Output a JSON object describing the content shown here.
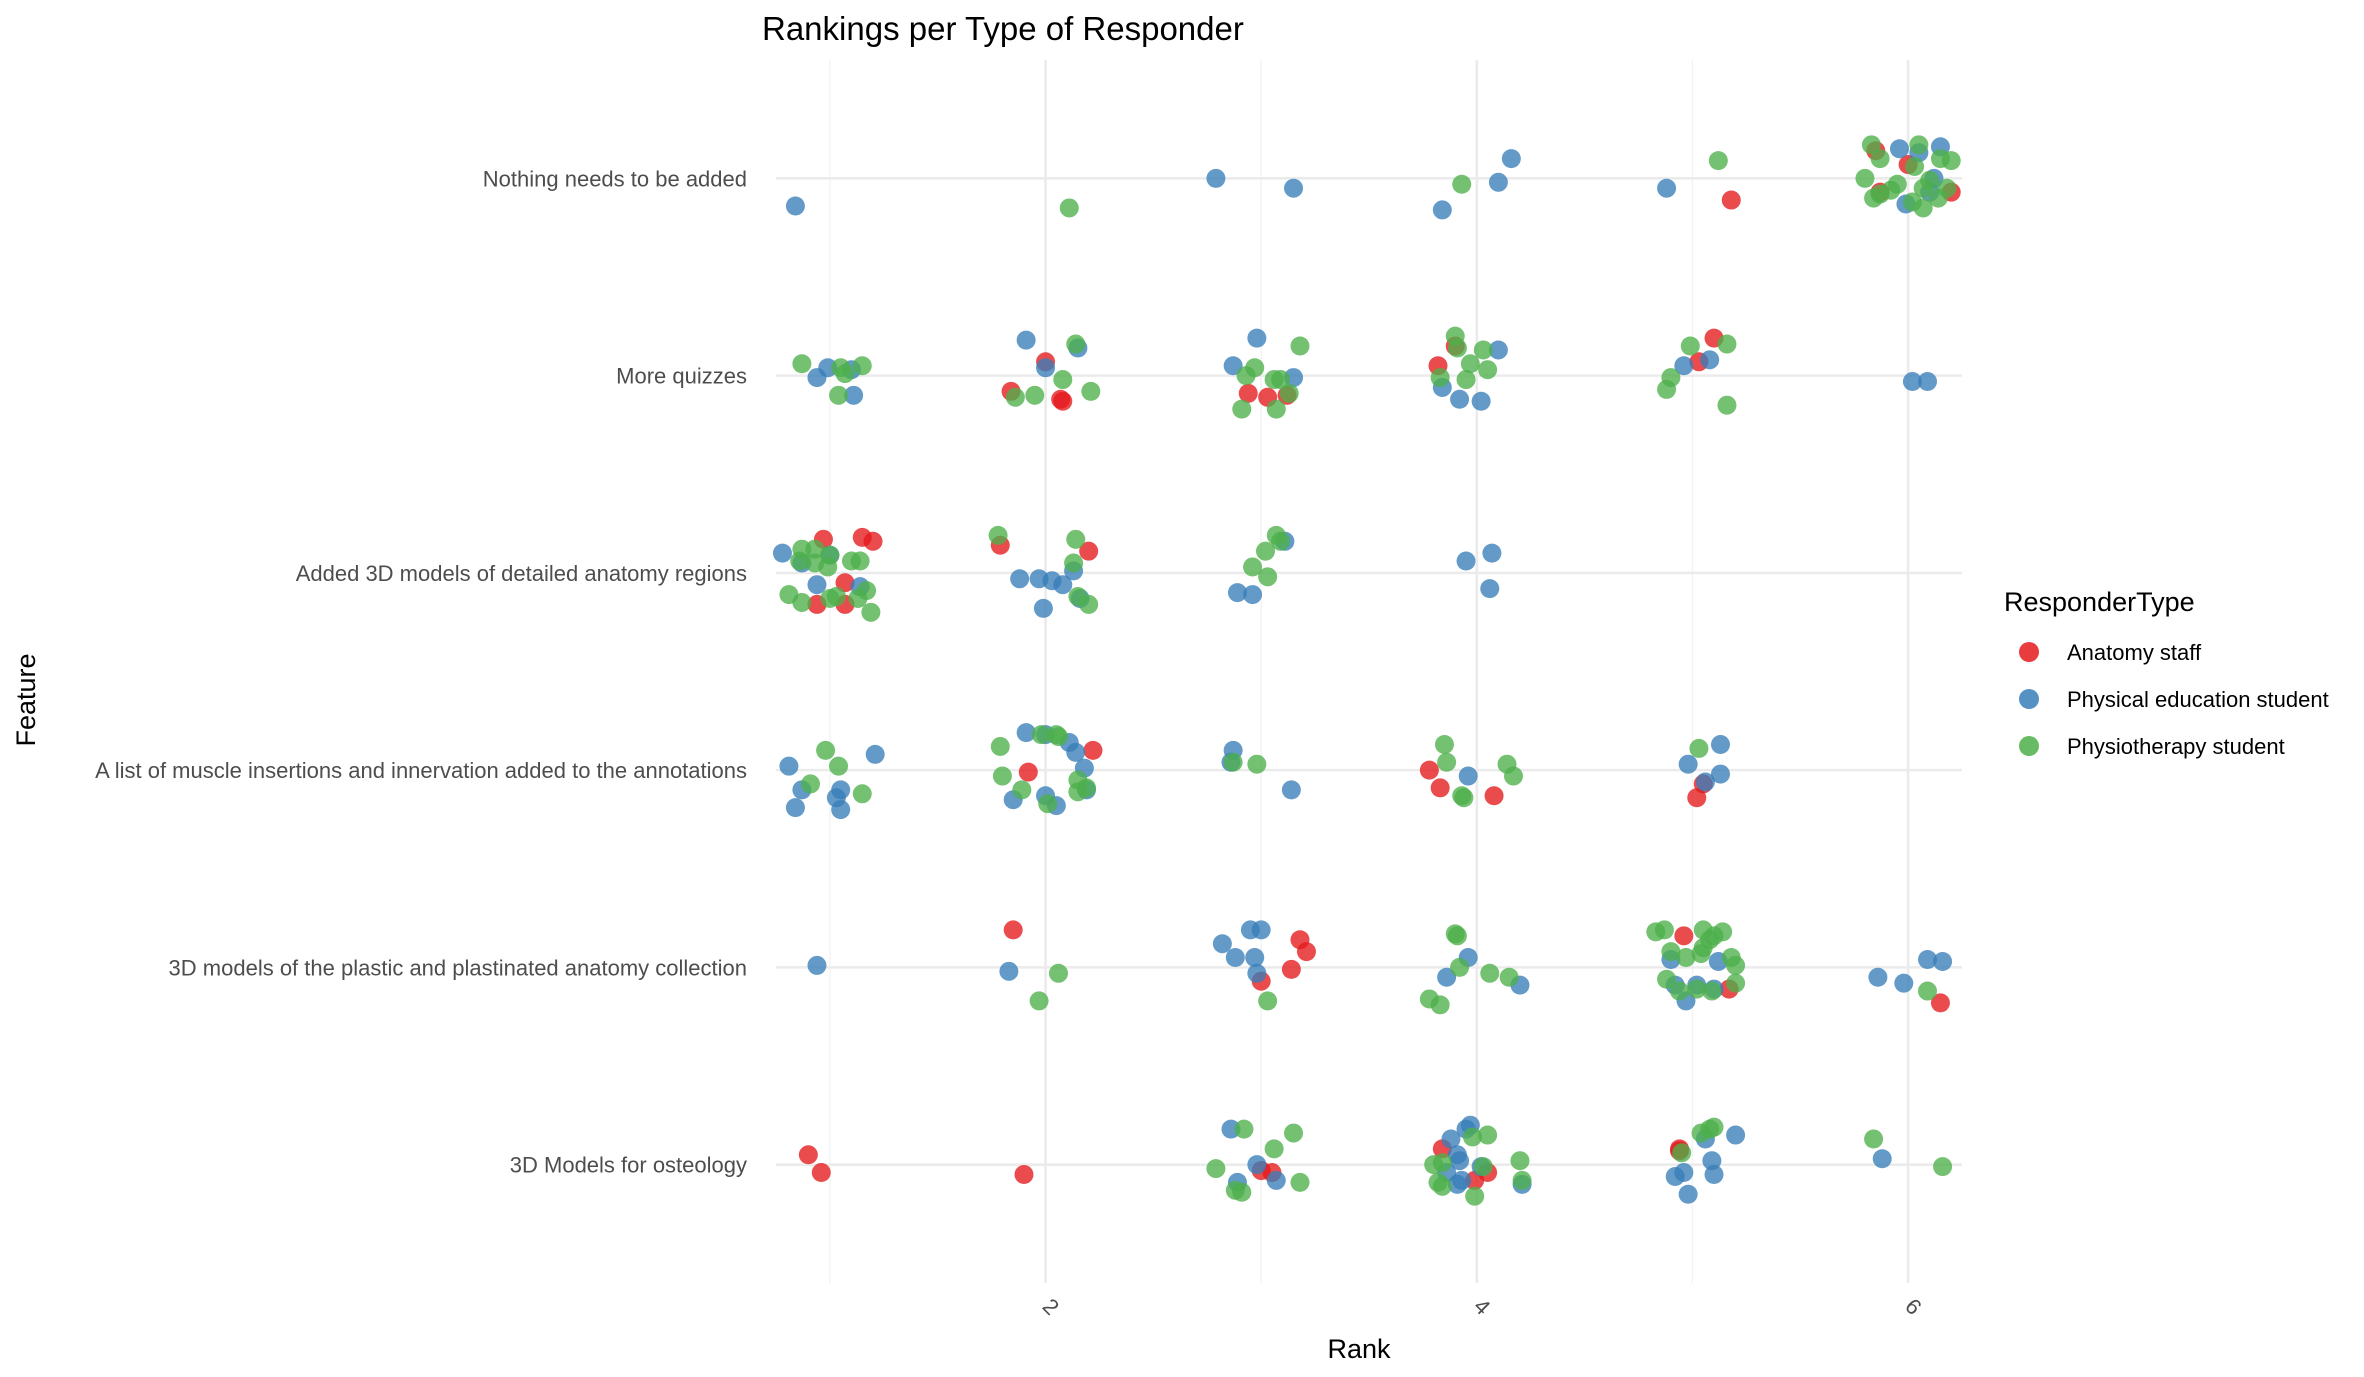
{
  "chart_data": {
    "type": "scatter",
    "title": "Rankings per Type of Responder",
    "xlabel": "Rank",
    "ylabel": "Feature",
    "xlim": [
      0.75,
      6.25
    ],
    "x_ticks": [
      "2",
      "4",
      "6"
    ],
    "x_tick_values": [
      2,
      4,
      6
    ],
    "x_tick_rotation": "45deg",
    "categories": [
      "3D Models for osteology",
      "3D models of the plastic and plastinated anatomy collection",
      "A list of muscle insertions and innervation added to the annotations",
      "Added 3D models of detailed anatomy regions",
      "More quizzes",
      "Nothing needs to be added"
    ],
    "grid": true,
    "jitter": true,
    "legend": {
      "title": "ResponderType",
      "position": "right"
    },
    "series": [
      {
        "name": "Anatomy staff",
        "color": "#E41A1C",
        "points": [
          [
            5.85,
            6.14
          ],
          [
            6.0,
            6.07
          ],
          [
            5.87,
            5.93
          ],
          [
            6.2,
            5.93
          ],
          [
            5.18,
            5.89
          ],
          [
            3.9,
            5.15
          ],
          [
            3.82,
            5.05
          ],
          [
            2.0,
            5.07
          ],
          [
            2.08,
            4.87
          ],
          [
            2.07,
            4.88
          ],
          [
            1.84,
            4.92
          ],
          [
            2.94,
            4.91
          ],
          [
            3.03,
            4.89
          ],
          [
            3.12,
            4.9
          ],
          [
            5.1,
            5.19
          ],
          [
            5.03,
            5.07
          ],
          [
            0.97,
            4.17
          ],
          [
            1.07,
            3.95
          ],
          [
            1.15,
            4.18
          ],
          [
            1.2,
            4.16
          ],
          [
            0.94,
            3.84
          ],
          [
            1.07,
            3.84
          ],
          [
            1.79,
            4.14
          ],
          [
            2.2,
            4.11
          ],
          [
            1.92,
            2.99
          ],
          [
            2.22,
            3.1
          ],
          [
            3.78,
            3.0
          ],
          [
            3.83,
            2.91
          ],
          [
            4.08,
            2.87
          ],
          [
            5.05,
            2.93
          ],
          [
            5.02,
            2.86
          ],
          [
            1.85,
            2.19
          ],
          [
            3.18,
            2.14
          ],
          [
            3.21,
            2.08
          ],
          [
            3.14,
            1.99
          ],
          [
            3.0,
            1.93
          ],
          [
            4.96,
            2.16
          ],
          [
            5.17,
            1.89
          ],
          [
            6.15,
            1.82
          ],
          [
            0.9,
            1.05
          ],
          [
            0.96,
            0.96
          ],
          [
            1.9,
            0.95
          ],
          [
            3.0,
            0.97
          ],
          [
            3.05,
            0.96
          ],
          [
            3.84,
            1.08
          ],
          [
            4.05,
            0.96
          ],
          [
            3.99,
            0.92
          ],
          [
            4.94,
            1.07
          ],
          [
            4.94,
            1.08
          ]
        ]
      },
      {
        "name": "Physical education student",
        "color": "#377EB8",
        "points": [
          [
            0.84,
            5.86
          ],
          [
            2.79,
            6.0
          ],
          [
            3.15,
            5.95
          ],
          [
            4.16,
            6.1
          ],
          [
            4.1,
            5.98
          ],
          [
            3.84,
            5.84
          ],
          [
            4.88,
            5.95
          ],
          [
            6.15,
            6.16
          ],
          [
            6.05,
            6.13
          ],
          [
            5.96,
            6.15
          ],
          [
            6.1,
            5.93
          ],
          [
            5.99,
            5.87
          ],
          [
            6.12,
            6.0
          ],
          [
            0.94,
            4.99
          ],
          [
            0.99,
            5.04
          ],
          [
            1.1,
            5.03
          ],
          [
            1.11,
            4.9
          ],
          [
            1.91,
            5.18
          ],
          [
            2.0,
            5.04
          ],
          [
            2.15,
            5.14
          ],
          [
            2.98,
            5.19
          ],
          [
            2.87,
            5.05
          ],
          [
            3.15,
            4.99
          ],
          [
            4.1,
            5.13
          ],
          [
            3.84,
            4.94
          ],
          [
            3.92,
            4.88
          ],
          [
            4.02,
            4.87
          ],
          [
            5.08,
            5.08
          ],
          [
            4.96,
            5.05
          ],
          [
            6.02,
            4.97
          ],
          [
            6.09,
            4.97
          ],
          [
            0.78,
            4.1
          ],
          [
            0.87,
            4.05
          ],
          [
            0.94,
            3.94
          ],
          [
            1.0,
            4.09
          ],
          [
            1.14,
            3.93
          ],
          [
            1.88,
            3.97
          ],
          [
            1.97,
            3.97
          ],
          [
            2.03,
            3.96
          ],
          [
            2.08,
            3.94
          ],
          [
            2.13,
            4.01
          ],
          [
            2.16,
            3.87
          ],
          [
            1.99,
            3.82
          ],
          [
            3.11,
            4.16
          ],
          [
            2.89,
            3.9
          ],
          [
            2.96,
            3.89
          ],
          [
            3.95,
            4.06
          ],
          [
            4.07,
            4.1
          ],
          [
            4.06,
            3.92
          ],
          [
            0.81,
            3.02
          ],
          [
            0.84,
            2.81
          ],
          [
            0.87,
            2.9
          ],
          [
            1.03,
            2.86
          ],
          [
            1.05,
            2.9
          ],
          [
            1.21,
            3.08
          ],
          [
            1.05,
            2.8
          ],
          [
            1.91,
            3.19
          ],
          [
            2.0,
            3.18
          ],
          [
            2.11,
            3.14
          ],
          [
            2.14,
            3.09
          ],
          [
            2.18,
            3.01
          ],
          [
            2.19,
            2.9
          ],
          [
            1.85,
            2.85
          ],
          [
            2.0,
            2.87
          ],
          [
            2.05,
            2.82
          ],
          [
            2.87,
            3.1
          ],
          [
            2.86,
            3.04
          ],
          [
            3.14,
            2.9
          ],
          [
            3.96,
            2.97
          ],
          [
            5.13,
            3.13
          ],
          [
            5.13,
            2.98
          ],
          [
            5.06,
            2.94
          ],
          [
            4.98,
            3.03
          ],
          [
            0.94,
            2.01
          ],
          [
            1.83,
            1.98
          ],
          [
            2.95,
            2.19
          ],
          [
            3.0,
            2.19
          ],
          [
            2.82,
            2.12
          ],
          [
            2.88,
            2.05
          ],
          [
            2.97,
            2.05
          ],
          [
            2.98,
            1.97
          ],
          [
            3.96,
            2.05
          ],
          [
            3.86,
            1.95
          ],
          [
            4.2,
            1.91
          ],
          [
            4.9,
            2.04
          ],
          [
            4.92,
            1.91
          ],
          [
            4.97,
            1.83
          ],
          [
            5.12,
            2.03
          ],
          [
            5.1,
            1.89
          ],
          [
            5.02,
            1.91
          ],
          [
            5.86,
            1.95
          ],
          [
            5.98,
            1.92
          ],
          [
            6.09,
            2.04
          ],
          [
            6.16,
            2.03
          ],
          [
            2.86,
            1.18
          ],
          [
            2.89,
            0.91
          ],
          [
            2.98,
            1.0
          ],
          [
            3.07,
            0.92
          ],
          [
            3.97,
            1.2
          ],
          [
            3.95,
            1.18
          ],
          [
            3.88,
            1.13
          ],
          [
            3.91,
            1.05
          ],
          [
            3.86,
            0.96
          ],
          [
            3.91,
            0.9
          ],
          [
            3.93,
            0.92
          ],
          [
            4.02,
            0.99
          ],
          [
            4.21,
            0.9
          ],
          [
            3.92,
            1.02
          ],
          [
            5.06,
            1.13
          ],
          [
            5.2,
            1.15
          ],
          [
            5.09,
            1.02
          ],
          [
            4.92,
            0.94
          ],
          [
            4.96,
            0.96
          ],
          [
            4.98,
            0.85
          ],
          [
            5.1,
            0.95
          ],
          [
            5.88,
            1.03
          ]
        ]
      },
      {
        "name": "Physiotherapy student",
        "color": "#4DAF4A",
        "points": [
          [
            2.11,
            5.85
          ],
          [
            3.93,
            5.97
          ],
          [
            5.12,
            6.09
          ],
          [
            5.83,
            6.17
          ],
          [
            5.87,
            6.1
          ],
          [
            5.8,
            6.0
          ],
          [
            5.87,
            5.92
          ],
          [
            5.92,
            5.94
          ],
          [
            6.02,
            5.88
          ],
          [
            6.07,
            5.85
          ],
          [
            6.1,
            5.99
          ],
          [
            6.18,
            5.95
          ],
          [
            6.15,
            6.1
          ],
          [
            6.2,
            6.09
          ],
          [
            6.03,
            6.06
          ],
          [
            6.05,
            6.17
          ],
          [
            6.07,
            5.95
          ],
          [
            6.14,
            5.9
          ],
          [
            5.95,
            5.97
          ],
          [
            5.84,
            5.9
          ],
          [
            0.87,
            5.06
          ],
          [
            1.05,
            5.04
          ],
          [
            1.07,
            5.01
          ],
          [
            1.04,
            4.9
          ],
          [
            1.15,
            5.05
          ],
          [
            1.86,
            4.89
          ],
          [
            1.95,
            4.9
          ],
          [
            2.08,
            4.98
          ],
          [
            2.14,
            5.16
          ],
          [
            2.21,
            4.92
          ],
          [
            2.97,
            5.04
          ],
          [
            2.93,
            5.0
          ],
          [
            3.18,
            5.15
          ],
          [
            3.09,
            4.98
          ],
          [
            3.06,
            4.98
          ],
          [
            3.13,
            4.91
          ],
          [
            3.07,
            4.83
          ],
          [
            2.91,
            4.83
          ],
          [
            3.9,
            5.2
          ],
          [
            3.91,
            5.14
          ],
          [
            3.95,
            4.98
          ],
          [
            3.97,
            5.06
          ],
          [
            4.05,
            5.03
          ],
          [
            4.03,
            5.13
          ],
          [
            3.83,
            4.99
          ],
          [
            4.9,
            4.99
          ],
          [
            4.88,
            4.93
          ],
          [
            4.99,
            5.15
          ],
          [
            5.16,
            5.16
          ],
          [
            5.16,
            4.85
          ],
          [
            0.86,
            4.06
          ],
          [
            0.87,
            4.12
          ],
          [
            0.93,
            4.12
          ],
          [
            1.0,
            4.09
          ],
          [
            0.99,
            4.03
          ],
          [
            0.93,
            4.05
          ],
          [
            1.1,
            4.06
          ],
          [
            1.14,
            4.06
          ],
          [
            1.17,
            3.91
          ],
          [
            1.19,
            3.8
          ],
          [
            0.81,
            3.89
          ],
          [
            0.87,
            3.85
          ],
          [
            1.0,
            3.87
          ],
          [
            1.03,
            3.88
          ],
          [
            1.13,
            3.87
          ],
          [
            1.78,
            4.19
          ],
          [
            2.14,
            4.17
          ],
          [
            2.13,
            4.05
          ],
          [
            2.15,
            3.88
          ],
          [
            2.2,
            3.84
          ],
          [
            3.07,
            4.19
          ],
          [
            3.09,
            4.16
          ],
          [
            3.02,
            4.11
          ],
          [
            2.96,
            4.03
          ],
          [
            3.03,
            3.98
          ],
          [
            0.98,
            3.1
          ],
          [
            0.91,
            2.93
          ],
          [
            1.04,
            3.02
          ],
          [
            1.15,
            2.88
          ],
          [
            1.79,
            3.12
          ],
          [
            1.8,
            2.97
          ],
          [
            1.89,
            2.9
          ],
          [
            1.98,
            3.18
          ],
          [
            2.05,
            3.18
          ],
          [
            2.06,
            3.17
          ],
          [
            2.01,
            2.83
          ],
          [
            2.15,
            2.95
          ],
          [
            2.19,
            2.91
          ],
          [
            2.15,
            2.89
          ],
          [
            2.87,
            3.04
          ],
          [
            2.98,
            3.03
          ],
          [
            3.85,
            3.13
          ],
          [
            3.86,
            3.04
          ],
          [
            4.14,
            3.03
          ],
          [
            4.17,
            2.97
          ],
          [
            3.93,
            2.87
          ],
          [
            3.94,
            2.86
          ],
          [
            5.03,
            3.11
          ],
          [
            1.97,
            1.83
          ],
          [
            2.06,
            1.97
          ],
          [
            3.78,
            1.84
          ],
          [
            3.03,
            1.83
          ],
          [
            3.83,
            1.81
          ],
          [
            3.9,
            2.17
          ],
          [
            3.91,
            2.16
          ],
          [
            3.92,
            2.0
          ],
          [
            4.06,
            1.97
          ],
          [
            4.15,
            1.95
          ],
          [
            4.83,
            2.18
          ],
          [
            4.87,
            2.19
          ],
          [
            4.9,
            2.08
          ],
          [
            4.88,
            1.94
          ],
          [
            4.97,
            2.05
          ],
          [
            5.04,
            2.07
          ],
          [
            5.05,
            2.1
          ],
          [
            5.05,
            2.19
          ],
          [
            5.1,
            2.16
          ],
          [
            5.14,
            2.18
          ],
          [
            5.08,
            2.14
          ],
          [
            5.18,
            2.05
          ],
          [
            5.2,
            2.01
          ],
          [
            5.09,
            1.88
          ],
          [
            5.2,
            1.92
          ],
          [
            4.94,
            1.88
          ],
          [
            5.02,
            1.89
          ],
          [
            6.09,
            1.88
          ],
          [
            2.92,
            1.18
          ],
          [
            3.15,
            1.16
          ],
          [
            3.06,
            1.08
          ],
          [
            2.79,
            0.98
          ],
          [
            2.88,
            0.87
          ],
          [
            2.91,
            0.86
          ],
          [
            3.18,
            0.91
          ],
          [
            3.98,
            1.14
          ],
          [
            4.05,
            1.15
          ],
          [
            3.8,
            1.0
          ],
          [
            3.84,
            1.01
          ],
          [
            3.82,
            0.91
          ],
          [
            3.84,
            0.89
          ],
          [
            3.99,
            0.84
          ],
          [
            4.2,
            1.02
          ],
          [
            4.21,
            0.92
          ],
          [
            4.03,
            0.99
          ],
          [
            5.04,
            1.16
          ],
          [
            5.08,
            1.18
          ],
          [
            5.1,
            1.19
          ],
          [
            4.95,
            1.06
          ],
          [
            5.84,
            1.13
          ],
          [
            6.16,
            0.99
          ]
        ]
      }
    ]
  }
}
